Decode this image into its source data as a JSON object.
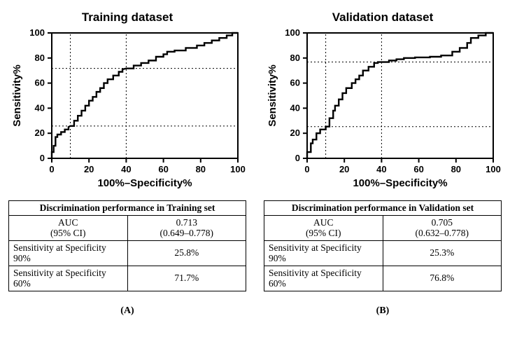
{
  "panels": [
    {
      "letter": "(A)",
      "title": "Training dataset",
      "chart": {
        "type": "roc-step",
        "xlim": [
          0,
          100
        ],
        "ylim": [
          0,
          100
        ],
        "xticks": [
          0,
          20,
          40,
          60,
          80,
          100
        ],
        "yticks": [
          0,
          20,
          40,
          60,
          80,
          100
        ],
        "xlabel": "100%–Specificity%",
        "ylabel": "Sensitivity%",
        "line_color": "#000000",
        "line_width": 2.4,
        "grid_color": "#000000",
        "background": "#ffffff",
        "ref_vlines": [
          10,
          40
        ],
        "ref_hlines": [
          25.8,
          71.7
        ],
        "roc_points": [
          [
            0,
            0
          ],
          [
            0,
            5
          ],
          [
            1,
            5
          ],
          [
            1,
            10
          ],
          [
            2,
            10
          ],
          [
            2,
            17
          ],
          [
            3,
            17
          ],
          [
            3,
            19
          ],
          [
            5,
            19
          ],
          [
            5,
            21
          ],
          [
            7,
            21
          ],
          [
            7,
            23
          ],
          [
            9,
            23
          ],
          [
            9,
            25
          ],
          [
            10,
            25.8
          ],
          [
            12,
            25.8
          ],
          [
            12,
            30
          ],
          [
            14,
            30
          ],
          [
            14,
            34
          ],
          [
            16,
            34
          ],
          [
            16,
            38
          ],
          [
            18,
            38
          ],
          [
            18,
            42
          ],
          [
            20,
            42
          ],
          [
            20,
            46
          ],
          [
            22,
            46
          ],
          [
            22,
            49
          ],
          [
            24,
            49
          ],
          [
            24,
            53
          ],
          [
            26,
            53
          ],
          [
            26,
            56
          ],
          [
            28,
            56
          ],
          [
            28,
            60
          ],
          [
            30,
            60
          ],
          [
            30,
            63
          ],
          [
            33,
            63
          ],
          [
            33,
            66
          ],
          [
            36,
            66
          ],
          [
            36,
            69
          ],
          [
            38,
            69
          ],
          [
            38,
            71
          ],
          [
            40,
            71.7
          ],
          [
            44,
            71.7
          ],
          [
            44,
            74
          ],
          [
            48,
            74
          ],
          [
            48,
            76
          ],
          [
            52,
            76
          ],
          [
            52,
            78
          ],
          [
            56,
            78
          ],
          [
            56,
            81
          ],
          [
            60,
            81
          ],
          [
            60,
            83
          ],
          [
            62,
            83
          ],
          [
            62,
            85
          ],
          [
            66,
            85
          ],
          [
            66,
            86
          ],
          [
            72,
            86
          ],
          [
            72,
            88
          ],
          [
            78,
            88
          ],
          [
            78,
            90
          ],
          [
            82,
            90
          ],
          [
            82,
            92
          ],
          [
            86,
            92
          ],
          [
            86,
            94
          ],
          [
            90,
            94
          ],
          [
            90,
            96
          ],
          [
            94,
            96
          ],
          [
            94,
            98
          ],
          [
            97,
            98
          ],
          [
            97,
            100
          ],
          [
            100,
            100
          ]
        ]
      },
      "table": {
        "header": "Discrimination performance in Training set",
        "rows": [
          {
            "label_line1": "AUC",
            "label_line2": "(95% CI)",
            "value_line1": "0.713",
            "value_line2": "(0.649–0.778)"
          },
          {
            "label": "Sensitivity at Specificity 90%",
            "value": "25.8%"
          },
          {
            "label": "Sensitivity at Specificity 60%",
            "value": "71.7%"
          }
        ]
      }
    },
    {
      "letter": "(B)",
      "title": "Validation dataset",
      "chart": {
        "type": "roc-step",
        "xlim": [
          0,
          100
        ],
        "ylim": [
          0,
          100
        ],
        "xticks": [
          0,
          20,
          40,
          60,
          80,
          100
        ],
        "yticks": [
          0,
          20,
          40,
          60,
          80,
          100
        ],
        "xlabel": "100%–Specificity%",
        "ylabel": "Sensitivity%",
        "line_color": "#000000",
        "line_width": 2.4,
        "grid_color": "#000000",
        "background": "#ffffff",
        "ref_vlines": [
          10,
          40
        ],
        "ref_hlines": [
          25.3,
          76.8
        ],
        "roc_points": [
          [
            0,
            0
          ],
          [
            0,
            5
          ],
          [
            2,
            5
          ],
          [
            2,
            12
          ],
          [
            3,
            12
          ],
          [
            3,
            15
          ],
          [
            5,
            15
          ],
          [
            5,
            20
          ],
          [
            7,
            20
          ],
          [
            7,
            23
          ],
          [
            10,
            23
          ],
          [
            10,
            25.3
          ],
          [
            12,
            25.3
          ],
          [
            12,
            32
          ],
          [
            14,
            32
          ],
          [
            14,
            38
          ],
          [
            15,
            38
          ],
          [
            15,
            42
          ],
          [
            17,
            42
          ],
          [
            17,
            47
          ],
          [
            19,
            47
          ],
          [
            19,
            52
          ],
          [
            21,
            52
          ],
          [
            21,
            56
          ],
          [
            24,
            56
          ],
          [
            24,
            60
          ],
          [
            26,
            60
          ],
          [
            26,
            63
          ],
          [
            28,
            63
          ],
          [
            28,
            66
          ],
          [
            30,
            66
          ],
          [
            30,
            70
          ],
          [
            33,
            70
          ],
          [
            33,
            73
          ],
          [
            36,
            73
          ],
          [
            36,
            76
          ],
          [
            38,
            76
          ],
          [
            38,
            76.8
          ],
          [
            40,
            76.8
          ],
          [
            44,
            76.8
          ],
          [
            44,
            78
          ],
          [
            48,
            78
          ],
          [
            48,
            79
          ],
          [
            52,
            79
          ],
          [
            52,
            80
          ],
          [
            58,
            80
          ],
          [
            58,
            80.5
          ],
          [
            66,
            80.5
          ],
          [
            66,
            81
          ],
          [
            72,
            81
          ],
          [
            72,
            82
          ],
          [
            78,
            82
          ],
          [
            78,
            85
          ],
          [
            82,
            85
          ],
          [
            82,
            88
          ],
          [
            86,
            88
          ],
          [
            86,
            92
          ],
          [
            88,
            92
          ],
          [
            88,
            96
          ],
          [
            92,
            96
          ],
          [
            92,
            98
          ],
          [
            96,
            98
          ],
          [
            96,
            100
          ],
          [
            100,
            100
          ]
        ]
      },
      "table": {
        "header": "Discrimination performance in Validation set",
        "rows": [
          {
            "label_line1": "AUC",
            "label_line2": "(95% CI)",
            "value_line1": "0.705",
            "value_line2": "(0.632–0.778)"
          },
          {
            "label": "Sensitivity at Specificity 90%",
            "value": "25.3%"
          },
          {
            "label": "Sensitivity at Specificity 60%",
            "value": "76.8%"
          }
        ]
      }
    }
  ]
}
